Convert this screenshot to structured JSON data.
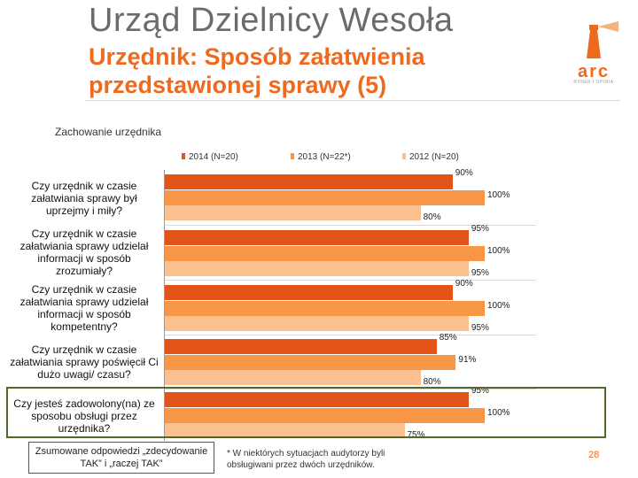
{
  "header": {
    "title": "Urząd Dzielnicy Wesoła",
    "subtitle": "Urzędnik: Sposób załatwienia przedstawionej sprawy (5)"
  },
  "logo": {
    "text": "arc",
    "subtext": "RYNEK I OPINIA"
  },
  "colors": {
    "series_2014": "#e2531a",
    "series_2013": "#f79646",
    "series_2012": "#fac08f",
    "accent": "#ee6a1e",
    "highlight_border": "#4f6a2b"
  },
  "chart_data": {
    "type": "bar",
    "orientation": "horizontal",
    "title": "Zachowanie urzędnika",
    "legend_position": "top",
    "xlim": [
      0,
      100
    ],
    "categories": [
      "Czy urzędnik w czasie załatwiania sprawy był uprzejmy i miły?",
      "Czy urzędnik w czasie załatwiania sprawy udzielał informacji w sposób zrozumiały?",
      "Czy urzędnik w czasie załatwiania sprawy udzielał informacji w sposób kompetentny?",
      "Czy urzędnik w czasie załatwiania sprawy poświęcił Ci dużo uwagi/ czasu?",
      "Czy jesteś zadowolony(na) ze sposobu obsługi przez urzędnika?"
    ],
    "series": [
      {
        "name": "2014 (N=20)",
        "values": [
          90,
          95,
          90,
          85,
          95
        ],
        "labels": [
          "90%",
          "95%",
          "90%",
          "85%",
          "95%"
        ]
      },
      {
        "name": "2013 (N=22*)",
        "values": [
          100,
          100,
          100,
          91,
          100
        ],
        "labels": [
          "100%",
          "100%",
          "100%",
          "91%",
          "100%"
        ]
      },
      {
        "name": "2012 (N=20)",
        "values": [
          80,
          95,
          95,
          80,
          75
        ],
        "labels": [
          "80%",
          "95%",
          "95%",
          "80%",
          "75%"
        ]
      }
    ]
  },
  "summary": "Zsumowane odpowiedzi „zdecydowanie TAK” i „raczej TAK”",
  "footnote": "* W niektórych sytuacjach audytorzy byli obsługiwani przez dwóch urzędników.",
  "page_number": "28"
}
